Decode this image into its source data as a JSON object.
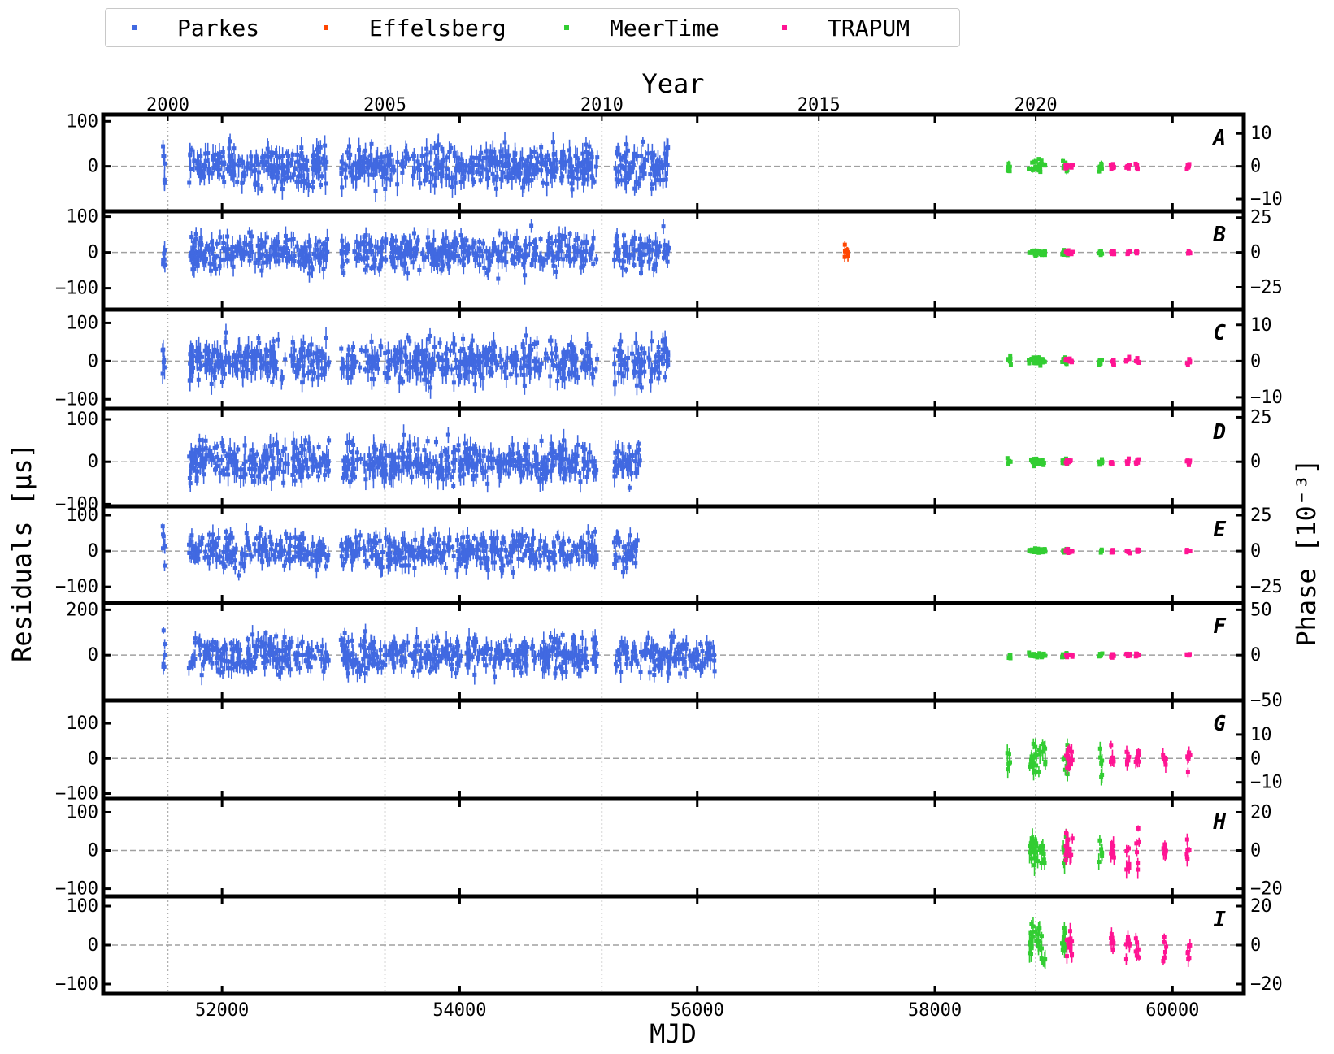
{
  "legend": [
    {
      "label": "Parkes",
      "color": "#4169e1"
    },
    {
      "label": "Effelsberg",
      "color": "#ff4500"
    },
    {
      "label": "MeerTime",
      "color": "#32cd32"
    },
    {
      "label": "TRAPUM",
      "color": "#ff1493"
    }
  ],
  "chart_data": {
    "type": "scatter",
    "subtype": "timing residuals with error bars, stacked panels",
    "xlabel": "MJD",
    "top_xlabel": "Year",
    "ylabel": "Residuals [μs]",
    "right_ylabel": "Phase [10⁻³]",
    "xlim": [
      51000,
      60600
    ],
    "xticks": [
      52000,
      54000,
      56000,
      58000,
      60000
    ],
    "year_ticks": [
      {
        "label": "2000",
        "mjd": 51544
      },
      {
        "label": "2005",
        "mjd": 53371
      },
      {
        "label": "2010",
        "mjd": 55197
      },
      {
        "label": "2015",
        "mjd": 57023
      },
      {
        "label": "2020",
        "mjd": 58849
      }
    ],
    "grid": "dotted vertical lines at year ticks",
    "zero_line": "dashed grey",
    "panels": [
      {
        "label": "A",
        "ylim": [
          -100,
          115
        ],
        "yticks": [
          100,
          0
        ],
        "phase_ratio": 7.3,
        "phase_ticks": [
          10,
          0,
          -10
        ],
        "parkes": {
          "segments": [
            [
              51500,
              51520
            ],
            [
              51720,
              52900
            ],
            [
              53000,
              55160
            ],
            [
              55300,
              55760
            ]
          ],
          "spread": 32
        },
        "meertime": {
          "segments": [
            [
              58610,
              58640
            ],
            [
              58790,
              58930
            ],
            [
              59070,
              59120
            ],
            [
              59380,
              59410
            ]
          ],
          "spread": 8
        },
        "trapum": {
          "segments": [
            [
              59100,
              59160
            ],
            [
              59480,
              59510
            ],
            [
              59610,
              59640
            ],
            [
              59690,
              59720
            ],
            [
              60120,
              60150
            ]
          ],
          "spread": 5
        }
      },
      {
        "label": "B",
        "ylim": [
          -160,
          115
        ],
        "yticks": [
          100,
          0,
          -100
        ],
        "phase_ratio": 3.9,
        "phase_ticks": [
          25,
          0,
          -25
        ],
        "parkes": {
          "segments": [
            [
              51500,
              51520
            ],
            [
              51720,
              52900
            ],
            [
              53000,
              55160
            ],
            [
              55300,
              55760
            ]
          ],
          "spread": 35
        },
        "effelsberg": {
          "segments": [
            [
              57240,
              57270
            ]
          ],
          "spread": 20
        },
        "meertime": {
          "segments": [
            [
              58790,
              58930
            ],
            [
              59070,
              59120
            ],
            [
              59380,
              59410
            ]
          ],
          "spread": 5
        },
        "trapum": {
          "segments": [
            [
              59100,
              59160
            ],
            [
              59480,
              59510
            ],
            [
              59610,
              59640
            ],
            [
              59690,
              59720
            ],
            [
              60120,
              60150
            ]
          ],
          "spread": 4
        }
      },
      {
        "label": "C",
        "ylim": [
          -125,
          135
        ],
        "yticks": [
          100,
          0,
          -100
        ],
        "phase_ratio": 9.5,
        "phase_ticks": [
          10,
          0,
          -10
        ],
        "parkes": {
          "segments": [
            [
              51500,
              51520
            ],
            [
              51720,
              52900
            ],
            [
              53000,
              55160
            ],
            [
              55300,
              55760
            ]
          ],
          "spread": 38
        },
        "meertime": {
          "segments": [
            [
              58610,
              58640
            ],
            [
              58790,
              58930
            ],
            [
              59070,
              59120
            ],
            [
              59380,
              59410
            ]
          ],
          "spread": 8
        },
        "trapum": {
          "segments": [
            [
              59100,
              59160
            ],
            [
              59480,
              59510
            ],
            [
              59610,
              59640
            ],
            [
              59690,
              59720
            ],
            [
              60120,
              60150
            ]
          ],
          "spread": 6
        }
      },
      {
        "label": "D",
        "ylim": [
          -105,
          125
        ],
        "yticks": [
          100,
          0,
          -100
        ],
        "phase_ratio": 4.2,
        "phase_ticks": [
          25,
          0
        ],
        "parkes": {
          "segments": [
            [
              51720,
              52900
            ],
            [
              53000,
              55160
            ],
            [
              55300,
              55520
            ]
          ],
          "spread": 34
        },
        "meertime": {
          "segments": [
            [
              58610,
              58640
            ],
            [
              58790,
              58930
            ],
            [
              59070,
              59120
            ],
            [
              59380,
              59410
            ]
          ],
          "spread": 6
        },
        "trapum": {
          "segments": [
            [
              59100,
              59160
            ],
            [
              59480,
              59510
            ],
            [
              59610,
              59640
            ],
            [
              59690,
              59720
            ],
            [
              60120,
              60150
            ]
          ],
          "spread": 5
        }
      },
      {
        "label": "E",
        "ylim": [
          -145,
          125
        ],
        "yticks": [
          100,
          0,
          -100
        ],
        "phase_ratio": 4.0,
        "phase_ticks": [
          25,
          0,
          -25
        ],
        "parkes": {
          "segments": [
            [
              51500,
              51520
            ],
            [
              51720,
              52900
            ],
            [
              53000,
              55160
            ],
            [
              55300,
              55520
            ]
          ],
          "spread": 34
        },
        "meertime": {
          "segments": [
            [
              58790,
              58930
            ],
            [
              59070,
              59120
            ],
            [
              59380,
              59410
            ]
          ],
          "spread": 5
        },
        "trapum": {
          "segments": [
            [
              59100,
              59160
            ],
            [
              59480,
              59510
            ],
            [
              59610,
              59640
            ],
            [
              59690,
              59720
            ],
            [
              60120,
              60150
            ]
          ],
          "spread": 4
        }
      },
      {
        "label": "F",
        "ylim": [
          -200,
          230
        ],
        "yticks": [
          200,
          0
        ],
        "phase_ratio": 4.0,
        "phase_ticks": [
          50,
          0,
          -50
        ],
        "parkes": {
          "segments": [
            [
              51500,
              51520
            ],
            [
              51720,
              52900
            ],
            [
              53000,
              55160
            ],
            [
              55300,
              56160
            ]
          ],
          "spread": 55
        },
        "meertime": {
          "segments": [
            [
              58610,
              58640
            ],
            [
              58790,
              58930
            ],
            [
              59070,
              59120
            ],
            [
              59380,
              59410
            ]
          ],
          "spread": 8
        },
        "trapum": {
          "segments": [
            [
              59100,
              59160
            ],
            [
              59480,
              59510
            ],
            [
              59610,
              59640
            ],
            [
              59690,
              59720
            ],
            [
              60120,
              60150
            ]
          ],
          "spread": 7
        }
      },
      {
        "label": "G",
        "ylim": [
          -115,
          165
        ],
        "yticks": [
          100,
          0,
          -100
        ],
        "phase_ratio": 6.8,
        "phase_ticks": [
          10,
          0,
          -10
        ],
        "meertime": {
          "segments": [
            [
              58610,
              58640
            ],
            [
              58790,
              58930
            ],
            [
              59070,
              59120
            ],
            [
              59380,
              59410
            ]
          ],
          "spread": 35
        },
        "trapum": {
          "segments": [
            [
              59100,
              59160
            ],
            [
              59480,
              59510
            ],
            [
              59610,
              59640
            ],
            [
              59690,
              59720
            ],
            [
              59920,
              59950
            ],
            [
              60120,
              60150
            ]
          ],
          "spread": 28
        }
      },
      {
        "label": "H",
        "ylim": [
          -120,
          135
        ],
        "yticks": [
          100,
          0,
          -100
        ],
        "phase_ratio": 5.0,
        "phase_ticks": [
          20,
          0,
          -20
        ],
        "meertime": {
          "segments": [
            [
              58790,
              58930
            ],
            [
              59070,
              59120
            ],
            [
              59380,
              59410
            ]
          ],
          "spread": 35
        },
        "trapum": {
          "segments": [
            [
              59100,
              59160
            ],
            [
              59480,
              59510
            ],
            [
              59610,
              59640
            ],
            [
              59690,
              59720
            ],
            [
              59920,
              59950
            ],
            [
              60120,
              60150
            ]
          ],
          "spread": 30
        }
      },
      {
        "label": "I",
        "ylim": [
          -125,
          125
        ],
        "yticks": [
          100,
          0,
          -100
        ],
        "phase_ratio": 5.0,
        "phase_ticks": [
          20,
          0,
          -20
        ],
        "meertime": {
          "segments": [
            [
              58790,
              58930
            ],
            [
              59070,
              59120
            ]
          ],
          "spread": 30
        },
        "trapum": {
          "segments": [
            [
              59100,
              59160
            ],
            [
              59480,
              59510
            ],
            [
              59610,
              59640
            ],
            [
              59690,
              59720
            ],
            [
              59920,
              59950
            ],
            [
              60120,
              60150
            ]
          ],
          "spread": 25
        }
      }
    ]
  }
}
